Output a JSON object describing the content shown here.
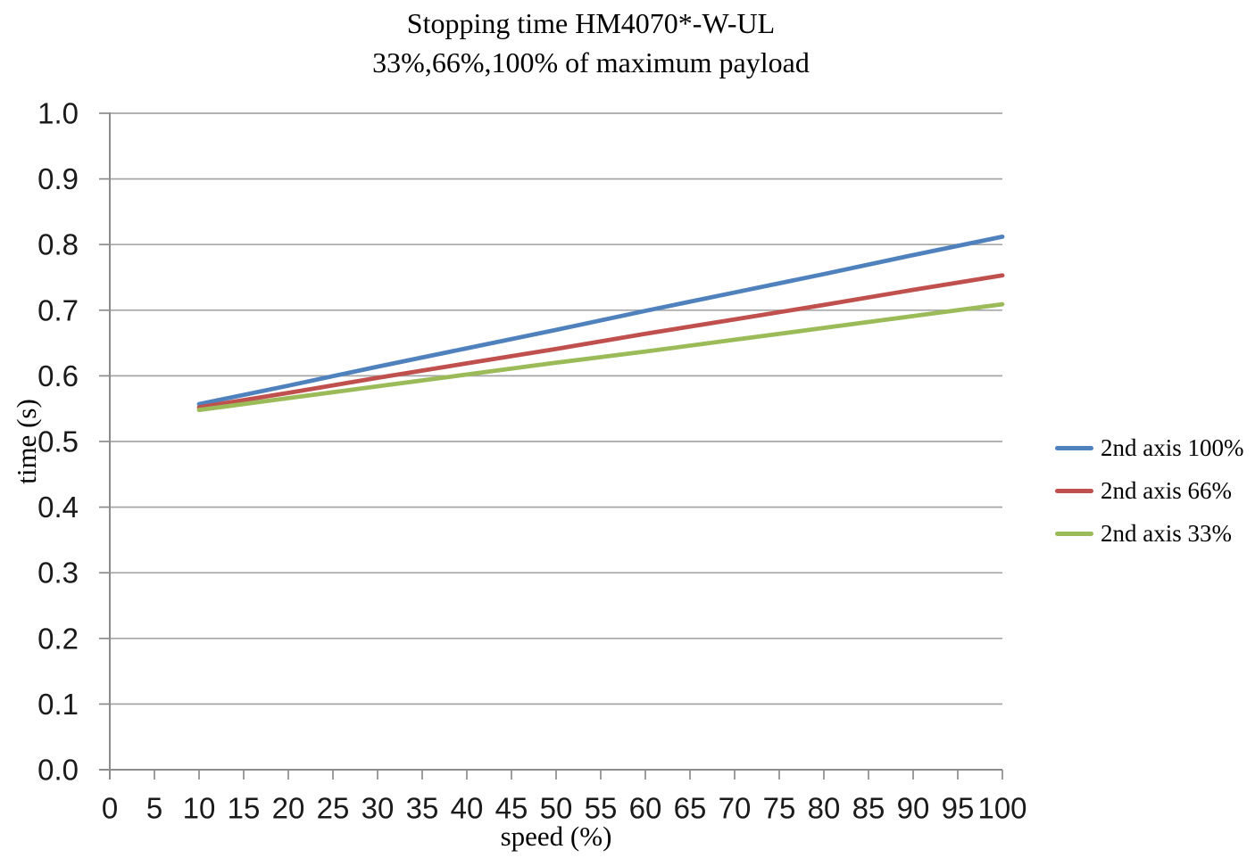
{
  "chart_data": {
    "type": "line",
    "title": "Stopping time HM4070*-W-UL",
    "subtitle": "33%,66%,100% of maximum payload",
    "xlabel": "speed (%)",
    "ylabel": "time (s)",
    "xlim": [
      0,
      100
    ],
    "ylim": [
      0.0,
      1.0
    ],
    "xticks": [
      "0",
      "5",
      "10",
      "15",
      "20",
      "25",
      "30",
      "35",
      "40",
      "45",
      "50",
      "55",
      "60",
      "65",
      "70",
      "75",
      "80",
      "85",
      "90",
      "95",
      "100"
    ],
    "yticks": [
      "0.0",
      "0.1",
      "0.2",
      "0.3",
      "0.4",
      "0.5",
      "0.6",
      "0.7",
      "0.8",
      "0.9",
      "1.0"
    ],
    "grid": "horizontal-major",
    "legend_position": "right",
    "x": [
      10,
      20,
      30,
      40,
      50,
      60,
      70,
      80,
      90,
      100
    ],
    "series": [
      {
        "name": "2nd axis 100%",
        "color": "#4F81BD",
        "values": [
          0.557,
          0.585,
          0.614,
          0.642,
          0.67,
          0.699,
          0.727,
          0.755,
          0.784,
          0.812
        ]
      },
      {
        "name": "2nd axis 66%",
        "color": "#C0504D",
        "values": [
          0.552,
          0.574,
          0.597,
          0.619,
          0.641,
          0.664,
          0.686,
          0.708,
          0.731,
          0.753
        ]
      },
      {
        "name": "2nd axis 33%",
        "color": "#9BBB59",
        "values": [
          0.548,
          0.566,
          0.584,
          0.602,
          0.62,
          0.637,
          0.655,
          0.673,
          0.691,
          0.709
        ]
      }
    ],
    "colors": {
      "gridline": "#A6A6A6",
      "axis": "#8C8C8C",
      "tick_text": "#1A1A1A",
      "title_text": "#000000"
    }
  }
}
